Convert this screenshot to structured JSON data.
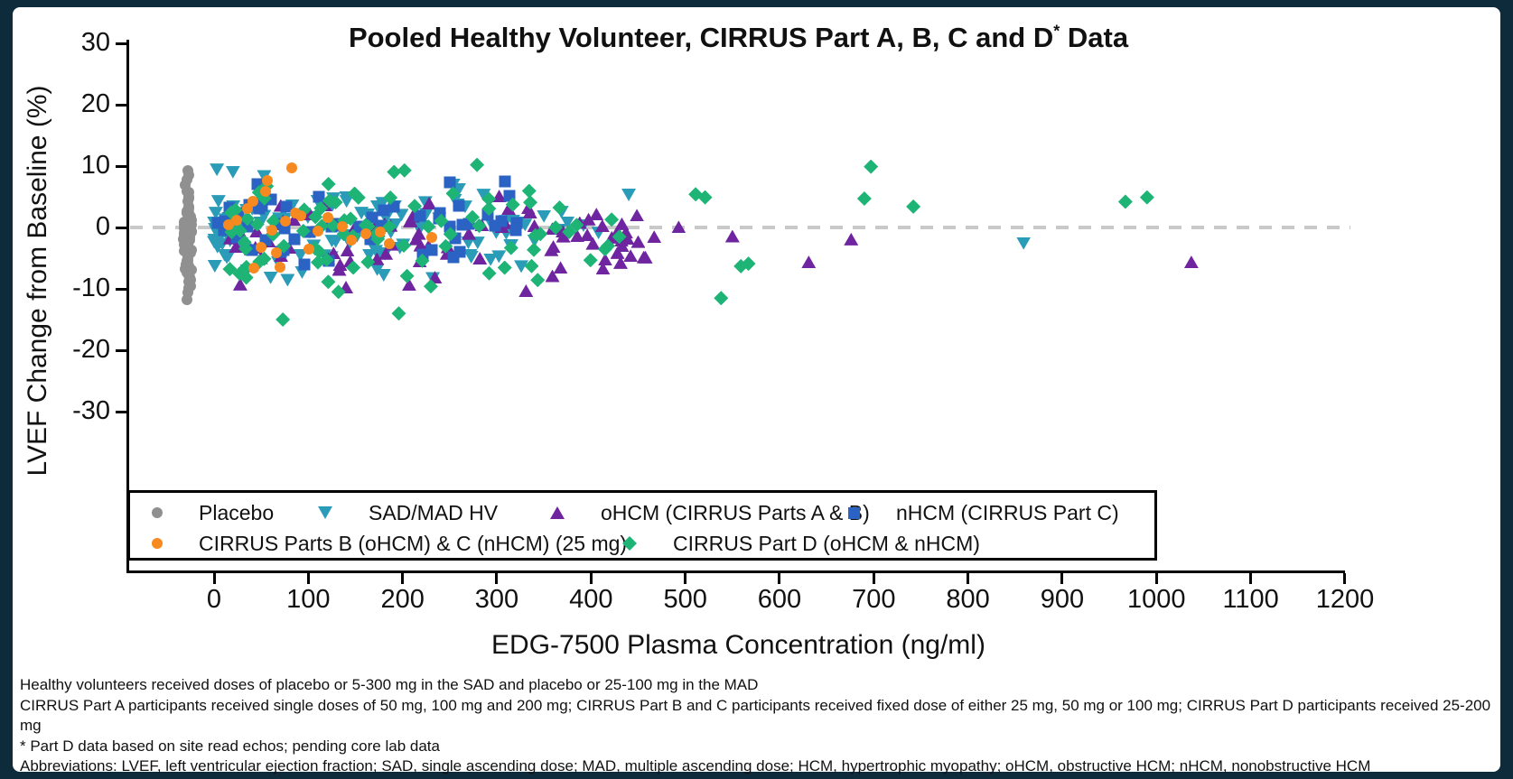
{
  "title": {
    "pre": "Pooled Healthy Volunteer, CIRRUS Part A, B, C and D",
    "sup": "*",
    "post": " Data"
  },
  "colors": {
    "frame_background": "#0e2b3c",
    "panel_background": "#ffffff",
    "axis": "#000000",
    "zero_line": "#c9c9c9",
    "placebo_gray": "#909090",
    "sadmad_teal": "#2a9cb8",
    "ohcm_purple": "#6f24a0",
    "nhcm_blue": "#2a63c4",
    "parts_bc_orange": "#f6891f",
    "part_d_green": "#1eb476"
  },
  "chart_data": {
    "type": "scatter",
    "title": "Pooled Healthy Volunteer, CIRRUS Part A, B, C and D* Data",
    "xlabel": "EDG-7500 Plasma Concentration (ng/ml)",
    "ylabel": "LVEF Change from Baseline (%)",
    "xlim": [
      -70,
      1230
    ],
    "ylim": [
      -30,
      30
    ],
    "x_ticks": [
      0,
      100,
      200,
      300,
      400,
      500,
      600,
      700,
      800,
      900,
      1000,
      1100,
      1200
    ],
    "y_ticks": [
      30,
      20,
      10,
      0,
      -10,
      -20,
      -30
    ],
    "zero_reference_line": 0,
    "grid": false,
    "legend_position": "inside bottom-left, boxed, 2 rows",
    "note": "Dense overlapping clouds below ~450 ng/ml; cluster params reproduce density, points[] are visually identifiable values",
    "series": [
      {
        "name": "Placebo",
        "marker": "circle",
        "color": "#909090",
        "seed": 11,
        "cluster": {
          "count": 65,
          "x_center": -28,
          "x_jitter": 4.5,
          "y_center": -1,
          "y_spread": 10.5
        },
        "points": [
          [
            -28,
            9.2
          ],
          [
            -27,
            8.6
          ],
          [
            -29,
            -11.8
          ],
          [
            -28,
            -10.6
          ],
          [
            -27,
            -9.8
          ],
          [
            -29,
            7.8
          ],
          [
            -27,
            -8.8
          ]
        ]
      },
      {
        "name": "SAD/MAD HV",
        "marker": "tri-down",
        "color": "#2a9cb8",
        "seed": 22,
        "cluster": {
          "count": 95,
          "x_min": 0,
          "x_max": 370,
          "x_pow": 1.5,
          "y_center": 0.5,
          "y_spread": 9
        },
        "points": [
          [
            3,
            9.4
          ],
          [
            20,
            9.0
          ],
          [
            440,
            5.3
          ],
          [
            859,
            -2.6
          ],
          [
            375,
            0.8
          ],
          [
            392,
            0.3
          ],
          [
            408,
            -0.9
          ],
          [
            350,
            1.8
          ],
          [
            60,
            -8.2
          ],
          [
            78,
            -8.6
          ],
          [
            232,
            -8.3
          ],
          [
            180,
            -7.8
          ],
          [
            310,
            -1.0
          ],
          [
            330,
            0.4
          ],
          [
            340,
            -2.2
          ]
        ]
      },
      {
        "name": "oHCM (CIRRUS Parts  A & B)",
        "marker": "tri-up",
        "color": "#6f24a0",
        "seed": 33,
        "cluster": {
          "count": 72,
          "x_min": 15,
          "x_max": 460,
          "x_pow": 1.4,
          "y_center": -1.8,
          "y_spread": 8
        },
        "points": [
          [
            388,
            0.8
          ],
          [
            396,
            -1.2
          ],
          [
            402,
            -2.6
          ],
          [
            412,
            0.3
          ],
          [
            422,
            -1.6
          ],
          [
            428,
            -4.1
          ],
          [
            433,
            -3.0
          ],
          [
            442,
            -4.6
          ],
          [
            456,
            -4.8
          ],
          [
            467,
            -1.5
          ],
          [
            493,
            0.1
          ],
          [
            550,
            -1.4
          ],
          [
            631,
            -5.6
          ],
          [
            676,
            -1.9
          ],
          [
            1037,
            -5.6
          ],
          [
            140,
            -9.7
          ],
          [
            207,
            -9.3
          ],
          [
            331,
            -10.3
          ],
          [
            360,
            -3.1
          ],
          [
            370,
            -0.6
          ],
          [
            415,
            -5.2
          ],
          [
            450,
            -2.3
          ]
        ]
      },
      {
        "name": "nHCM (CIRRUS Part  C)",
        "marker": "square",
        "color": "#2a63c4",
        "seed": 44,
        "cluster": {
          "count": 46,
          "x_min": 3,
          "x_max": 325,
          "x_pow": 1.4,
          "y_center": 0.5,
          "y_spread": 7
        },
        "points": [
          [
            250,
            7.3
          ],
          [
            309,
            7.5
          ],
          [
            96,
            -6.1
          ],
          [
            122,
            -5.4
          ],
          [
            290,
            2.0
          ],
          [
            305,
            1.0
          ],
          [
            320,
            -0.5
          ],
          [
            260,
            3.5
          ]
        ]
      },
      {
        "name": "CIRRUS Part D (oHCM & nHCM)",
        "marker": "diamond",
        "color": "#1eb476",
        "seed": 55,
        "cluster": {
          "count": 82,
          "x_min": 15,
          "x_max": 430,
          "x_pow": 1.4,
          "y_center": -0.3,
          "y_spread": 10
        },
        "points": [
          [
            202,
            9.3
          ],
          [
            279,
            10.2
          ],
          [
            697,
            9.9
          ],
          [
            690,
            4.7
          ],
          [
            742,
            3.4
          ],
          [
            511,
            5.4
          ],
          [
            521,
            4.9
          ],
          [
            538,
            -11.5
          ],
          [
            559,
            -6.3
          ],
          [
            567,
            -5.9
          ],
          [
            73,
            -15.0
          ],
          [
            196,
            -14.0
          ],
          [
            132,
            -10.5
          ],
          [
            967,
            4.2
          ],
          [
            990,
            4.9
          ],
          [
            230,
            -9.6
          ],
          [
            418,
            -3.0
          ],
          [
            430,
            -1.5
          ]
        ]
      },
      {
        "name": "CIRRUS Parts B (oHCM) & C (nHCM) (25 mg)",
        "marker": "circle",
        "color": "#f6891f",
        "seed": 66,
        "cluster": {
          "count": 0
        },
        "points": [
          [
            82,
            9.7
          ],
          [
            57,
            7.7
          ],
          [
            42,
            -6.6
          ],
          [
            70,
            -6.4
          ],
          [
            86,
            2.3
          ],
          [
            92,
            1.9
          ],
          [
            110,
            -0.6
          ],
          [
            146,
            -2.1
          ],
          [
            161,
            -1.1
          ],
          [
            176,
            -0.8
          ],
          [
            231,
            -1.6
          ],
          [
            35,
            3.1
          ],
          [
            24,
            1.2
          ],
          [
            15,
            0.4
          ],
          [
            50,
            -3.2
          ],
          [
            66,
            -4.1
          ],
          [
            101,
            -3.6
          ],
          [
            121,
            1.6
          ],
          [
            136,
            0.2
          ],
          [
            186,
            -2.6
          ],
          [
            61,
            -0.4
          ],
          [
            76,
            1.1
          ],
          [
            41,
            4.3
          ],
          [
            55,
            5.9
          ]
        ]
      }
    ]
  },
  "legend": {
    "items": [
      {
        "label": "Placebo",
        "marker": "circle",
        "color": "#909090"
      },
      {
        "label": "SAD/MAD HV",
        "marker": "tri-down",
        "color": "#2a9cb8"
      },
      {
        "label": "oHCM (CIRRUS Parts  A & B)",
        "marker": "tri-up",
        "color": "#6f24a0"
      },
      {
        "label": "nHCM (CIRRUS Part  C)",
        "marker": "square",
        "color": "#2a63c4"
      },
      {
        "label": "CIRRUS Parts B (oHCM) & C (nHCM) (25 mg)",
        "marker": "circle",
        "color": "#f6891f"
      },
      {
        "label": "CIRRUS Part D (oHCM & nHCM)",
        "marker": "diamond",
        "color": "#1eb476"
      }
    ]
  },
  "footnotes": [
    "Healthy volunteers  received doses of placebo or 5-300 mg in the SAD and placebo or 25-100 mg in the MAD",
    "CIRRUS Part A participants received single doses of 50 mg, 100 mg and 200 mg; CIRRUS Part B and C participants received fixed dose of either 25 mg, 50 mg or 100 mg; CIRRUS Part D participants received 25-200 mg",
    "* Part D data based on site read echos; pending core lab data",
    "Abbreviations:  LVEF, left ventricular ejection fraction; SAD, single ascending dose; MAD, multiple ascending dose; HCM, hypertrophic myopathy; oHCM, obstructive HCM; nHCM, nonobstructive HCM"
  ]
}
